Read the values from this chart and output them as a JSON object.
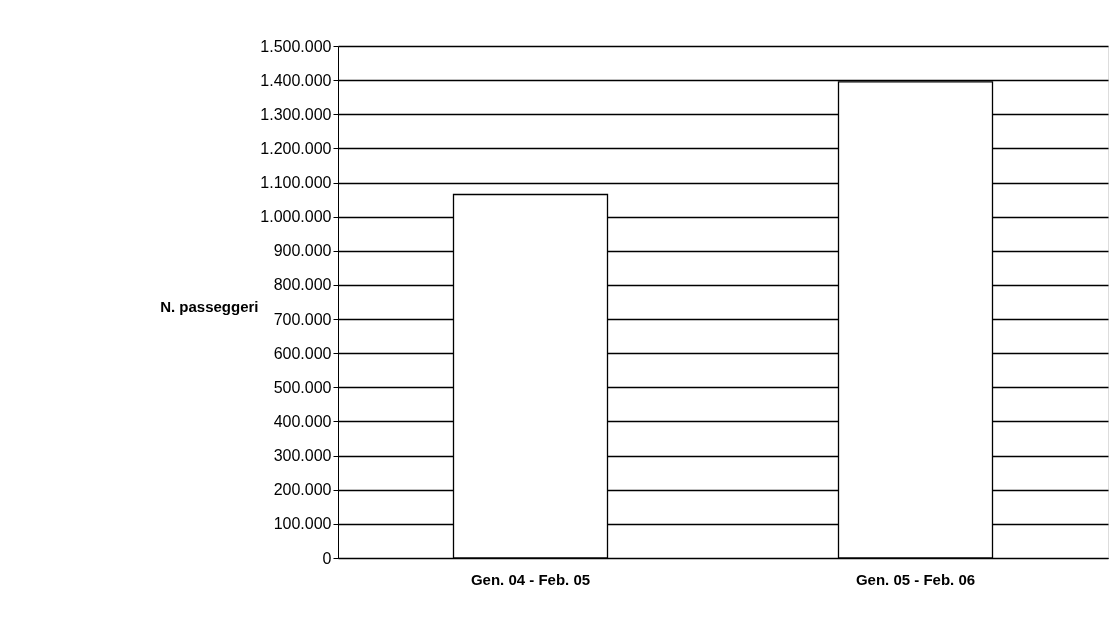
{
  "chart_data": {
    "type": "bar",
    "ylabel": "N. passeggeri",
    "categories": [
      "Gen. 04 - Feb. 05",
      "Gen. 05 - Feb. 06"
    ],
    "values": [
      1065000,
      1395000
    ],
    "color": "#ffffff",
    "ylim": [
      0,
      1500000
    ],
    "yticks": [
      {
        "value": 0,
        "label": "0"
      },
      {
        "value": 100000,
        "label": "100.000"
      },
      {
        "value": 200000,
        "label": "200.000"
      },
      {
        "value": 300000,
        "label": "300.000"
      },
      {
        "value": 400000,
        "label": "400.000"
      },
      {
        "value": 500000,
        "label": "500.000"
      },
      {
        "value": 600000,
        "label": "600.000"
      },
      {
        "value": 700000,
        "label": "700.000"
      },
      {
        "value": 800000,
        "label": "800.000"
      },
      {
        "value": 900000,
        "label": "900.000"
      },
      {
        "value": 1000000,
        "label": "1.000.000"
      },
      {
        "value": 1100000,
        "label": "1.100.000"
      },
      {
        "value": 1200000,
        "label": "1.200.000"
      },
      {
        "value": 1300000,
        "label": "1.300.000"
      },
      {
        "value": 1400000,
        "label": "1.400.000"
      },
      {
        "value": 1500000,
        "label": "1.500.000"
      }
    ],
    "grid": "y"
  }
}
